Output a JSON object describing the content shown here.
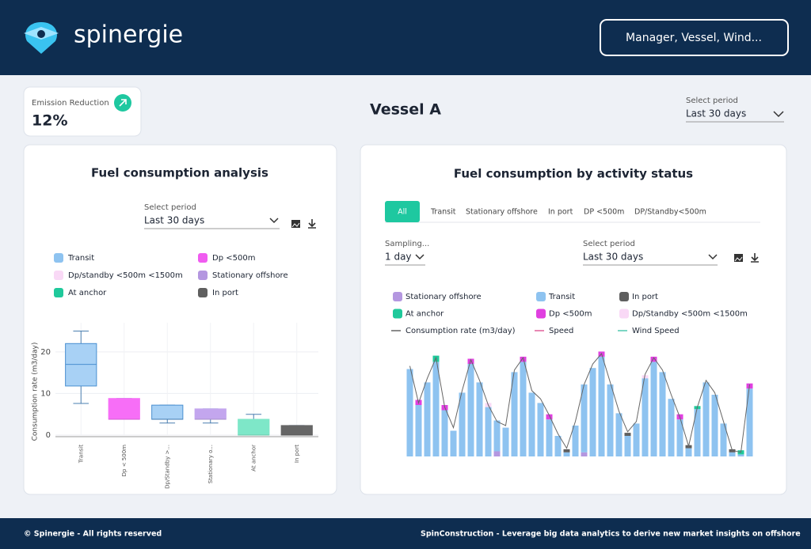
{
  "header": {
    "brand": "spinergie",
    "filter": "Manager, Vessel, Wind..."
  },
  "kpi": {
    "label": "Emission Reduction",
    "value": "12%"
  },
  "vessel": "Vessel A",
  "period_select": {
    "label": "Select period",
    "value": "Last 30 days"
  },
  "left_panel": {
    "title": "Fuel consumption analysis",
    "select": {
      "label": "Select period",
      "value": "Last 30 days"
    },
    "legend": [
      {
        "name": "Transit",
        "color": "#8ec3f0"
      },
      {
        "name": "Dp <500m",
        "color": "#f05cf0"
      },
      {
        "name": "Dp/standby <500m <1500m",
        "color": "#f9d9f6"
      },
      {
        "name": "Stationary offshore",
        "color": "#b497e0"
      },
      {
        "name": "At anchor",
        "color": "#1fc99b"
      },
      {
        "name": "In port",
        "color": "#5f5f5f"
      }
    ]
  },
  "right_panel": {
    "title": "Fuel consumption by activity status",
    "tabs": [
      "All",
      "Transit",
      "Stationary offshore",
      "In port",
      "DP <500m",
      "DP/Standby<500m"
    ],
    "active_tab": 0,
    "sampling": {
      "label": "Sampling...",
      "value": "1 day"
    },
    "select": {
      "label": "Select period",
      "value": "Last 30 days"
    }
  },
  "chart_data": [
    {
      "type": "box",
      "ylabel": "Consumption rate (m3/day)",
      "categories": [
        "Transit",
        "Dp < 500m",
        "Dp/Standby >...",
        "Stationary o...",
        "At anchor",
        "In port"
      ],
      "boxes": [
        {
          "min": 7.6,
          "q1": 11.8,
          "median": 17,
          "q3": 22,
          "max": 25,
          "color": "#a8d1f5"
        },
        {
          "min": 3.8,
          "q1": 3.8,
          "median": 3.8,
          "q3": 8.8,
          "max": 8.8,
          "color": "#f76ef7"
        },
        {
          "min": 2.9,
          "q1": 3.8,
          "median": 3.8,
          "q3": 7.2,
          "max": 7.2,
          "color": "#a8d1f5"
        },
        {
          "min": 2.9,
          "q1": 3.8,
          "median": 3.8,
          "q3": 6.3,
          "max": 6.3,
          "color": "#c3a6ee"
        },
        {
          "min": 0,
          "q1": 0,
          "median": 0,
          "q3": 3.8,
          "max": 5,
          "color": "#7ee7c8"
        },
        {
          "min": 0,
          "q1": 0,
          "median": 0,
          "q3": 2.3,
          "max": 2.3,
          "color": "#666666"
        }
      ],
      "ylim": [
        0,
        27
      ],
      "yticks": [
        0,
        10,
        20
      ],
      "grid": true
    },
    {
      "type": "stacked_bar",
      "ylim": [
        0,
        100
      ],
      "series": [
        {
          "name": "Stationary offshore",
          "color": "#b497e0",
          "values": [
            0,
            0,
            0,
            0,
            0,
            0,
            0,
            0,
            0,
            0,
            5,
            0,
            0,
            0,
            0,
            0,
            0,
            0,
            0,
            0,
            4,
            0,
            0,
            0,
            0,
            0,
            0,
            0,
            0,
            0,
            0,
            0,
            0,
            0,
            0,
            0,
            0,
            0,
            0,
            0
          ]
        },
        {
          "name": "Transit",
          "color": "#8ec3f0",
          "values": [
            85,
            50,
            72,
            92,
            45,
            25,
            62,
            90,
            72,
            48,
            30,
            28,
            82,
            92,
            62,
            52,
            36,
            20,
            4,
            30,
            66,
            86,
            97,
            70,
            42,
            20,
            32,
            76,
            92,
            82,
            56,
            36,
            8,
            46,
            72,
            60,
            32,
            4,
            2,
            66
          ]
        },
        {
          "name": "In port",
          "color": "#5f5f5f",
          "values": [
            0,
            0,
            0,
            0,
            0,
            0,
            0,
            0,
            0,
            0,
            0,
            0,
            0,
            0,
            0,
            0,
            0,
            0,
            3,
            0,
            0,
            0,
            0,
            0,
            0,
            3,
            0,
            0,
            0,
            0,
            0,
            0,
            3,
            0,
            0,
            0,
            0,
            3,
            0,
            0
          ]
        },
        {
          "name": "At anchor",
          "color": "#1fc99b",
          "values": [
            0,
            0,
            0,
            6,
            0,
            0,
            0,
            0,
            0,
            0,
            0,
            0,
            0,
            0,
            0,
            0,
            0,
            0,
            0,
            0,
            0,
            0,
            0,
            0,
            0,
            0,
            0,
            0,
            0,
            0,
            0,
            0,
            0,
            3,
            0,
            0,
            0,
            0,
            4,
            0
          ]
        },
        {
          "name": "Dp <500m",
          "color": "#e040e0",
          "values": [
            0,
            5,
            0,
            0,
            5,
            0,
            0,
            5,
            0,
            0,
            0,
            0,
            0,
            5,
            0,
            0,
            5,
            0,
            0,
            0,
            0,
            0,
            5,
            0,
            0,
            0,
            0,
            0,
            5,
            0,
            0,
            5,
            0,
            0,
            0,
            0,
            0,
            0,
            0,
            5
          ]
        },
        {
          "name": "Dp/Standby <500m <1500m",
          "color": "#f9d9f6",
          "values": [
            0,
            0,
            0,
            0,
            0,
            0,
            0,
            0,
            0,
            4,
            0,
            0,
            0,
            0,
            0,
            0,
            0,
            0,
            0,
            0,
            0,
            0,
            0,
            0,
            0,
            0,
            0,
            3,
            0,
            0,
            0,
            0,
            0,
            0,
            0,
            0,
            0,
            0,
            0,
            0
          ]
        },
        {
          "name": "Consumption rate (m3/day)",
          "type": "line",
          "color": "#666666",
          "values": [
            88,
            52,
            76,
            96,
            48,
            28,
            64,
            94,
            74,
            50,
            34,
            30,
            84,
            96,
            64,
            56,
            40,
            22,
            8,
            34,
            70,
            90,
            100,
            72,
            44,
            24,
            34,
            80,
            96,
            84,
            60,
            38,
            10,
            48,
            74,
            62,
            34,
            6,
            4,
            70
          ]
        },
        {
          "name": "Speed",
          "type": "line",
          "color": "#e0609a",
          "values": [
            null,
            null,
            null,
            null,
            null,
            null,
            null,
            null,
            null,
            null,
            null,
            null,
            null,
            null,
            null,
            null,
            null,
            null,
            null,
            null,
            null,
            null,
            null,
            null,
            null,
            null,
            null,
            null,
            null,
            null,
            null,
            null,
            null,
            null,
            null,
            null,
            null,
            null,
            null,
            null
          ]
        },
        {
          "name": "Wind Speed",
          "type": "line",
          "color": "#50c8b0",
          "values": [
            null,
            null,
            null,
            null,
            null,
            null,
            null,
            null,
            null,
            null,
            null,
            null,
            null,
            null,
            null,
            null,
            null,
            null,
            null,
            null,
            null,
            null,
            null,
            null,
            null,
            null,
            null,
            null,
            null,
            null,
            null,
            null,
            null,
            null,
            null,
            null,
            null,
            null,
            null,
            null
          ]
        }
      ]
    }
  ],
  "footer": {
    "left": "© Spinergie - All rights reserved",
    "right": "SpinConstruction - Leverage big data analytics to derive new market insights on offshore"
  }
}
